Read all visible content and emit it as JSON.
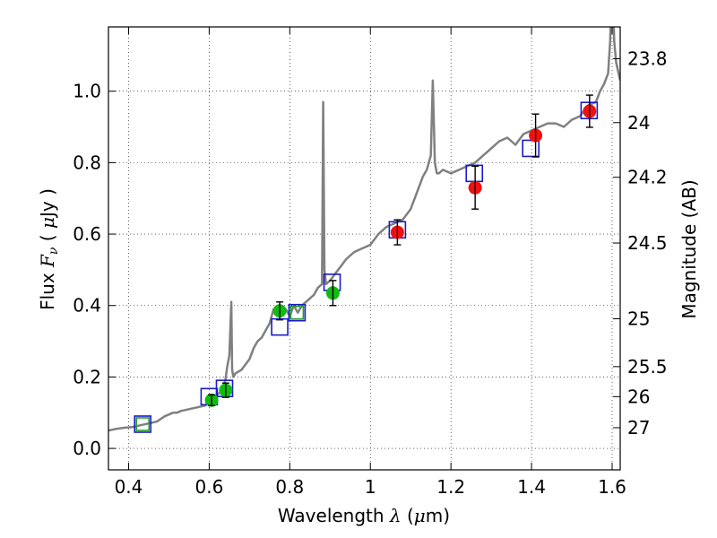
{
  "chart_data": {
    "type": "scatter",
    "title": "",
    "xlabel": "Wavelength  λ (μm)",
    "ylabel": "Flux  Fν  ( μJy )",
    "y2label": "Magnitude (AB)",
    "xlim": [
      0.35,
      1.62
    ],
    "ylim": [
      -0.06,
      1.18
    ],
    "grid": true,
    "legend": "none",
    "x_ticks": [
      0.4,
      0.6,
      0.8,
      1.0,
      1.2,
      1.4,
      1.6
    ],
    "x_tick_labels": [
      "0.4",
      "0.6",
      "0.8",
      "1",
      "1.2",
      "1.4",
      "1.6"
    ],
    "y_ticks": [
      0.0,
      0.2,
      0.4,
      0.6,
      0.8,
      1.0
    ],
    "y_tick_labels": [
      "0.0",
      "0.2",
      "0.4",
      "0.6",
      "0.8",
      "1.0"
    ],
    "y2_ticks": [
      {
        "label": "23.8",
        "flux": 1.091
      },
      {
        "label": "24",
        "flux": 0.912
      },
      {
        "label": "24.2",
        "flux": 0.759
      },
      {
        "label": "24.5",
        "flux": 0.575
      },
      {
        "label": "25",
        "flux": 0.363
      },
      {
        "label": "25.5",
        "flux": 0.229
      },
      {
        "label": "26",
        "flux": 0.145
      },
      {
        "label": "27",
        "flux": 0.058
      }
    ],
    "colors": {
      "spectrum": "#808080",
      "model_box_blue": "#1a1acc",
      "model_box_green": "#22a022",
      "green_points": "#11bb11",
      "red_points": "#ee1111",
      "errorbar": "#000000",
      "grid": "#b0b0b0"
    },
    "spectrum": {
      "name": "",
      "x": [
        0.35,
        0.37,
        0.39,
        0.41,
        0.43,
        0.45,
        0.47,
        0.49,
        0.5,
        0.51,
        0.52,
        0.53,
        0.55,
        0.57,
        0.59,
        0.6,
        0.61,
        0.62,
        0.63,
        0.64,
        0.645,
        0.65,
        0.655,
        0.657,
        0.66,
        0.665,
        0.68,
        0.69,
        0.7,
        0.71,
        0.72,
        0.73,
        0.74,
        0.75,
        0.76,
        0.77,
        0.78,
        0.79,
        0.8,
        0.81,
        0.82,
        0.83,
        0.84,
        0.85,
        0.86,
        0.87,
        0.88,
        0.883,
        0.886,
        0.89,
        0.9,
        0.92,
        0.94,
        0.96,
        0.98,
        1.0,
        1.02,
        1.04,
        1.06,
        1.08,
        1.1,
        1.12,
        1.13,
        1.14,
        1.15,
        1.155,
        1.16,
        1.165,
        1.17,
        1.18,
        1.2,
        1.22,
        1.24,
        1.26,
        1.28,
        1.3,
        1.32,
        1.34,
        1.36,
        1.38,
        1.4,
        1.42,
        1.44,
        1.46,
        1.48,
        1.5,
        1.52,
        1.54,
        1.56,
        1.57,
        1.58,
        1.59,
        1.595,
        1.6,
        1.605,
        1.61,
        1.62
      ],
      "y": [
        0.05,
        0.055,
        0.058,
        0.06,
        0.065,
        0.07,
        0.075,
        0.09,
        0.095,
        0.1,
        0.1,
        0.105,
        0.11,
        0.115,
        0.12,
        0.13,
        0.14,
        0.15,
        0.16,
        0.19,
        0.23,
        0.26,
        0.41,
        0.22,
        0.2,
        0.21,
        0.22,
        0.235,
        0.25,
        0.28,
        0.3,
        0.31,
        0.33,
        0.35,
        0.39,
        0.39,
        0.39,
        0.39,
        0.37,
        0.4,
        0.38,
        0.4,
        0.41,
        0.42,
        0.43,
        0.45,
        0.46,
        0.97,
        0.5,
        0.46,
        0.47,
        0.5,
        0.53,
        0.55,
        0.56,
        0.57,
        0.6,
        0.62,
        0.63,
        0.64,
        0.67,
        0.73,
        0.76,
        0.78,
        0.82,
        1.03,
        0.8,
        0.77,
        0.77,
        0.78,
        0.77,
        0.78,
        0.79,
        0.8,
        0.82,
        0.84,
        0.86,
        0.87,
        0.85,
        0.88,
        0.89,
        0.9,
        0.91,
        0.91,
        0.9,
        0.92,
        0.93,
        0.96,
        0.97,
        1.0,
        1.02,
        1.05,
        1.14,
        1.35,
        1.14,
        1.08,
        1.03
      ]
    },
    "model_boxes": [
      {
        "x": 0.435,
        "y": 0.068,
        "color": "green"
      },
      {
        "x": 0.435,
        "y": 0.068,
        "color": "blue"
      },
      {
        "x": 0.6,
        "y": 0.145,
        "color": "blue"
      },
      {
        "x": 0.638,
        "y": 0.168,
        "color": "blue"
      },
      {
        "x": 0.775,
        "y": 0.34,
        "color": "blue"
      },
      {
        "x": 0.818,
        "y": 0.38,
        "color": "blue"
      },
      {
        "x": 0.818,
        "y": 0.38,
        "color": "green"
      },
      {
        "x": 0.905,
        "y": 0.465,
        "color": "blue"
      },
      {
        "x": 1.067,
        "y": 0.612,
        "color": "blue"
      },
      {
        "x": 1.258,
        "y": 0.77,
        "color": "blue"
      },
      {
        "x": 1.398,
        "y": 0.84,
        "color": "blue"
      },
      {
        "x": 1.543,
        "y": 0.946,
        "color": "blue"
      }
    ],
    "points": [
      {
        "x": 0.606,
        "y": 0.135,
        "err": 0.015,
        "color": "green"
      },
      {
        "x": 0.641,
        "y": 0.163,
        "err": 0.02,
        "color": "green"
      },
      {
        "x": 0.775,
        "y": 0.385,
        "err": 0.025,
        "color": "green"
      },
      {
        "x": 0.907,
        "y": 0.435,
        "err": 0.035,
        "color": "green"
      },
      {
        "x": 1.067,
        "y": 0.605,
        "err": 0.035,
        "color": "red"
      },
      {
        "x": 1.26,
        "y": 0.73,
        "err": 0.06,
        "color": "red"
      },
      {
        "x": 1.41,
        "y": 0.876,
        "err": 0.06,
        "color": "red"
      },
      {
        "x": 1.544,
        "y": 0.944,
        "err": 0.045,
        "color": "red"
      }
    ]
  }
}
